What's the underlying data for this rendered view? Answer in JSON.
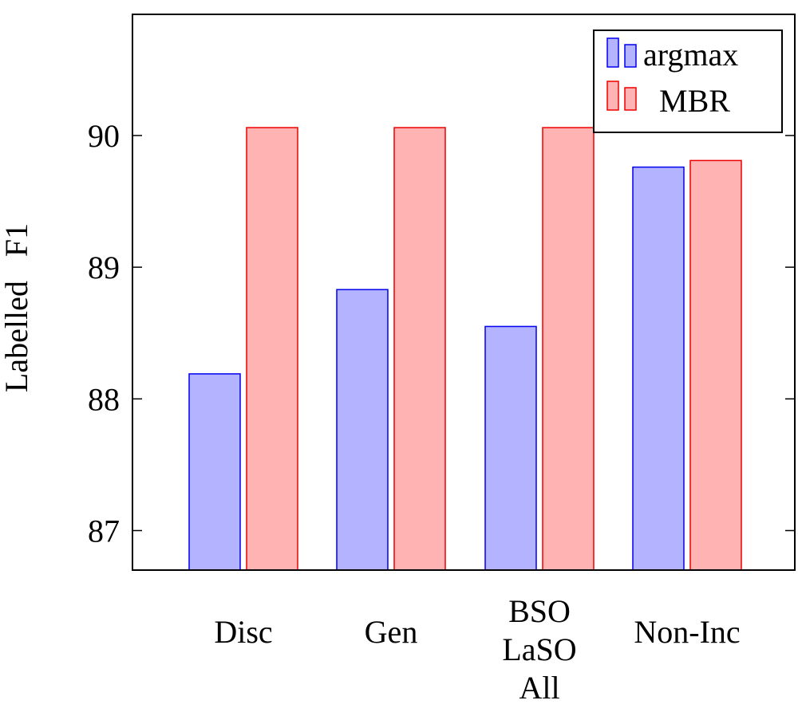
{
  "chart_data": {
    "type": "bar",
    "categories": [
      [
        "Disc"
      ],
      [
        "Gen"
      ],
      [
        "BSO",
        "LaSO",
        "All"
      ],
      [
        "Non-Inc"
      ]
    ],
    "series": [
      {
        "name": "argmax",
        "values": [
          88.19,
          88.83,
          88.55,
          89.76
        ],
        "fill": "#b3b3ff",
        "stroke": "#0000ee"
      },
      {
        "name": "MBR",
        "values": [
          90.06,
          90.06,
          90.06,
          89.81
        ],
        "fill": "#ffb3b3",
        "stroke": "#ee0000"
      }
    ],
    "title": "",
    "xlabel": "",
    "ylabel": "Labelled   F1",
    "ylim": [
      86.7,
      90.92
    ],
    "yticks": [
      87,
      88,
      89,
      90
    ],
    "grid": false,
    "legend": "top-right"
  }
}
